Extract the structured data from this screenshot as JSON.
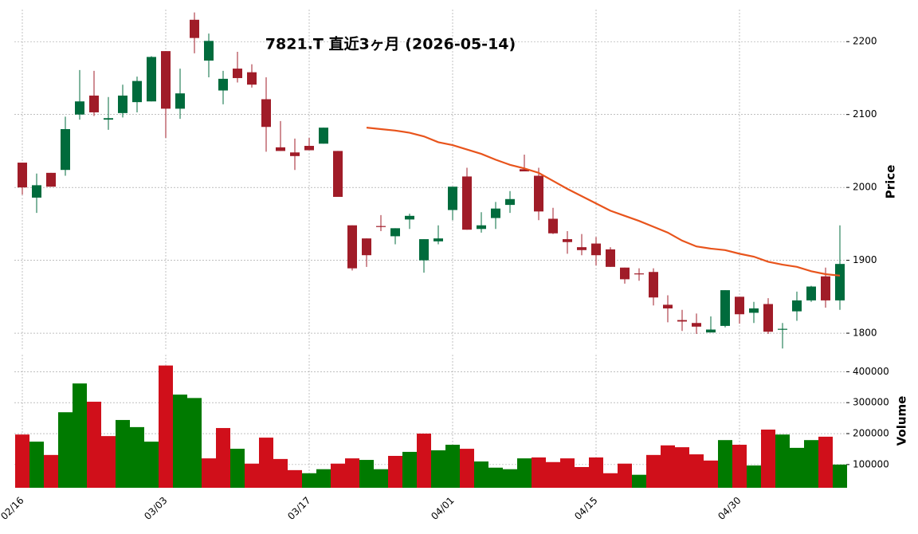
{
  "chart_data": {
    "type": "candlestick",
    "title": "7821.T 直近3ヶ月 (2026-05-14)",
    "categories": [
      "02/16",
      null,
      null,
      null,
      null,
      null,
      null,
      null,
      null,
      null,
      "03/03",
      null,
      null,
      null,
      null,
      null,
      null,
      null,
      null,
      null,
      "03/17",
      null,
      null,
      null,
      null,
      null,
      null,
      null,
      null,
      null,
      "04/01",
      null,
      null,
      null,
      null,
      null,
      null,
      null,
      null,
      null,
      "04/15",
      null,
      null,
      null,
      null,
      null,
      null,
      null,
      null,
      null,
      "04/30",
      null,
      null,
      null,
      null,
      null,
      null,
      null
    ],
    "open": [
      2034,
      1986,
      2020,
      2024,
      2100,
      2126,
      2093,
      2102,
      2117,
      2118,
      2187,
      2108,
      2230,
      2174,
      2133,
      2163,
      2158,
      2121,
      2055,
      2048,
      2057,
      2060,
      2050,
      1948,
      1930,
      1947,
      1933,
      1956,
      1900,
      1926,
      1969,
      2015,
      1943,
      1958,
      1976,
      2025,
      2016,
      1957,
      1929,
      1918,
      1923,
      1915,
      1890,
      1882,
      1884,
      1839,
      1818,
      1814,
      1801,
      1810,
      1850,
      1828,
      1840,
      1805,
      1830,
      1845,
      1878,
      1845
    ],
    "high": [
      2034,
      2019,
      2020,
      2097,
      2161,
      2160,
      2124,
      2141,
      2152,
      2180,
      2187,
      2163,
      2240,
      2211,
      2160,
      2186,
      2169,
      2151,
      2091,
      2067,
      2068,
      2082,
      2050,
      1948,
      1930,
      1962,
      1944,
      1964,
      1929,
      1948,
      2001,
      2027,
      1966,
      1980,
      1995,
      2045,
      2027,
      1972,
      1940,
      1936,
      1932,
      1918,
      1890,
      1889,
      1889,
      1852,
      1832,
      1827,
      1823,
      1859,
      1850,
      1843,
      1848,
      1814,
      1857,
      1865,
      1890,
      1948
    ],
    "low": [
      1990,
      1965,
      2001,
      2016,
      2093,
      2098,
      2079,
      2096,
      2103,
      2118,
      2068,
      2094,
      2184,
      2151,
      2114,
      2144,
      2137,
      2049,
      2050,
      2024,
      2051,
      2060,
      1987,
      1886,
      1891,
      1940,
      1922,
      1943,
      1883,
      1922,
      1955,
      1942,
      1938,
      1943,
      1965,
      2022,
      1955,
      1936,
      1909,
      1907,
      1893,
      1891,
      1868,
      1872,
      1838,
      1815,
      1803,
      1799,
      1801,
      1808,
      1813,
      1814,
      1799,
      1779,
      1817,
      1843,
      1835,
      1832
    ],
    "close": [
      2000,
      2003,
      2001,
      2080,
      2118,
      2103,
      2095,
      2126,
      2146,
      2179,
      2108,
      2129,
      2205,
      2201,
      2149,
      2150,
      2141,
      2083,
      2050,
      2043,
      2051,
      2082,
      1987,
      1889,
      1907,
      1946,
      1944,
      1961,
      1929,
      1930,
      2001,
      1942,
      1948,
      1971,
      1984,
      2022,
      1967,
      1937,
      1925,
      1914,
      1907,
      1891,
      1874,
      1881,
      1849,
      1834,
      1816,
      1809,
      1805,
      1859,
      1826,
      1834,
      1802,
      1806,
      1845,
      1864,
      1845,
      1895
    ],
    "candle_colors": {
      "up": "#006b3c",
      "down": "#a01c28"
    },
    "ma": {
      "color": "#e8541c",
      "values": [
        null,
        null,
        null,
        null,
        null,
        null,
        null,
        null,
        null,
        null,
        null,
        null,
        null,
        null,
        null,
        null,
        null,
        null,
        null,
        null,
        null,
        null,
        null,
        null,
        2082,
        2080,
        2078,
        2075,
        2070,
        2062,
        2058,
        2052,
        2046,
        2038,
        2031,
        2026,
        2020,
        2009,
        1998,
        1988,
        1978,
        1968,
        1961,
        1954,
        1946,
        1938,
        1927,
        1919,
        1916,
        1914,
        1909,
        1905,
        1898,
        1894,
        1891,
        1885,
        1881,
        1879
      ]
    },
    "ylim": [
      1776,
      2244
    ],
    "yticks": [
      1800,
      1900,
      2000,
      2100,
      2200
    ],
    "ylabel": "Price",
    "grid": true,
    "volume": {
      "values": [
        197000,
        174000,
        131000,
        269000,
        362000,
        303000,
        192000,
        244000,
        221000,
        174000,
        420000,
        326000,
        315000,
        120000,
        218000,
        151000,
        103000,
        187000,
        118000,
        82000,
        72000,
        85000,
        103000,
        120000,
        115000,
        85000,
        128000,
        141000,
        200000,
        146000,
        164000,
        151000,
        110000,
        90000,
        85000,
        120000,
        123000,
        108000,
        120000,
        92000,
        123000,
        72000,
        103000,
        67000,
        131000,
        162000,
        156000,
        133000,
        113000,
        179000,
        164000,
        97000,
        213000,
        197000,
        154000,
        179000,
        190000,
        100000
      ],
      "colors": {
        "up": "#007a00",
        "down": "#d00f1a"
      },
      "ylim": [
        25000,
        455000
      ],
      "yticks": [
        100000,
        200000,
        300000,
        400000
      ],
      "ylabel": "Volume"
    }
  }
}
